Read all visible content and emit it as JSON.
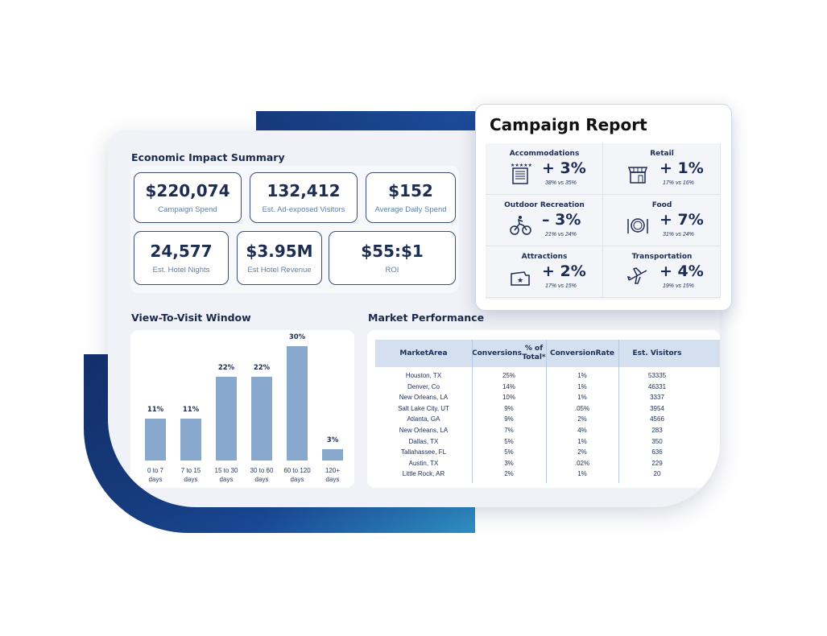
{
  "economic_impact": {
    "title": "Economic Impact Summary",
    "kpis": [
      {
        "value": "$220,074",
        "label": "Campaign Spend"
      },
      {
        "value": "132,412",
        "label": "Est. Ad-exposed Visitors"
      },
      {
        "value": "$152",
        "label": "Average Daily Spend"
      },
      {
        "value": "24,577",
        "label": "Est. Hotel Nights"
      },
      {
        "value": "$3.95M",
        "label": "Est Hotel Revenue"
      },
      {
        "value": "$55:$1",
        "label": "ROI"
      }
    ]
  },
  "view_to_visit": {
    "title": "View-To-Visit Window",
    "chart_data": {
      "type": "bar",
      "categories": [
        "0 to 7 days",
        "7 to 15 days",
        "15 to 30 days",
        "30 to 60 days",
        "60 to 120 days",
        "120+ days"
      ],
      "category_lines": [
        [
          "0 to 7",
          "days"
        ],
        [
          "7 to 15",
          "days"
        ],
        [
          "15 to 30",
          "days"
        ],
        [
          "30 to 60",
          "days"
        ],
        [
          "60 to 120",
          "days"
        ],
        [
          "120+",
          "days"
        ]
      ],
      "values": [
        11,
        11,
        22,
        22,
        30,
        3
      ],
      "value_labels": [
        "11%",
        "11%",
        "22%",
        "22%",
        "30%",
        "3%"
      ],
      "ylim": [
        0,
        30
      ],
      "color": "#88a8cd"
    }
  },
  "market_performance": {
    "title": "Market Performance",
    "headers": [
      [
        "Market",
        "Area"
      ],
      [
        "Conversions",
        "% of Total*"
      ],
      [
        "Conversion",
        "Rate"
      ],
      [
        "Est. Visitors"
      ]
    ],
    "rows": [
      [
        "Houston, TX",
        "25%",
        "1%",
        "53335"
      ],
      [
        "Denver, Co",
        "14%",
        "1%",
        "46331"
      ],
      [
        "New Orleans, LA",
        "10%",
        "1%",
        "3337"
      ],
      [
        "Salt Lake City, UT",
        "9%",
        ".05%",
        "3954"
      ],
      [
        "Atlanta, GA",
        "9%",
        "2%",
        "4566"
      ],
      [
        "New Orleans, LA",
        "7%",
        "4%",
        "283"
      ],
      [
        "Dallas, TX",
        "5%",
        "1%",
        "350"
      ],
      [
        "Tallahassee, FL",
        "5%",
        "2%",
        "636"
      ],
      [
        "Austin, TX",
        "3%",
        ".02%",
        "229"
      ],
      [
        "Little Rock, AR",
        "2%",
        "1%",
        "20"
      ]
    ]
  },
  "campaign_report": {
    "title": "Campaign Report",
    "categories": [
      {
        "label": "Accommodations",
        "change": "+ 3%",
        "detail": "38% vs 35%",
        "icon": "hotel-icon"
      },
      {
        "label": "Retail",
        "change": "+ 1%",
        "detail": "17% vs 16%",
        "icon": "storefront-icon"
      },
      {
        "label": "Outdoor Recreation",
        "change": "– 3%",
        "detail": "21% vs 24%",
        "icon": "cyclist-icon"
      },
      {
        "label": "Food",
        "change": "+ 7%",
        "detail": "31% vs 24%",
        "icon": "plate-icon"
      },
      {
        "label": "Attractions",
        "change": "+ 2%",
        "detail": "17% vs 15%",
        "icon": "ticket-icon"
      },
      {
        "label": "Transportation",
        "change": "+ 4%",
        "detail": "19% vs 15%",
        "icon": "airplane-icon"
      }
    ]
  },
  "colors": {
    "navy": "#1c2c52",
    "bar": "#88a8cd",
    "brand_blue": "#1a4a96",
    "table_header": "#d4e0ef"
  }
}
